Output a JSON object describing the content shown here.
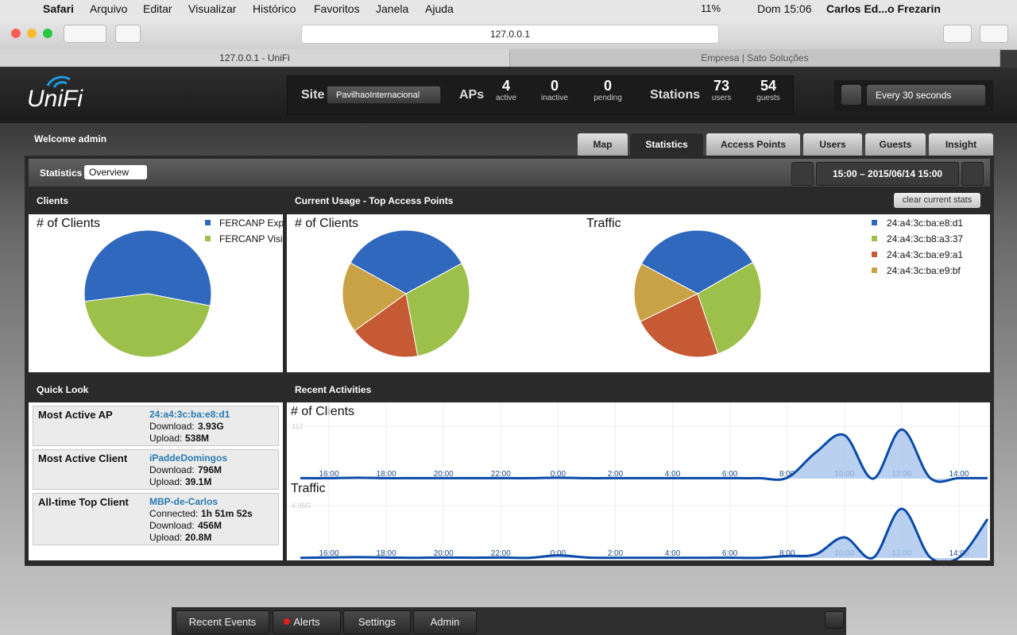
{
  "menubar": {
    "app": "Safari",
    "items": [
      "Arquivo",
      "Editar",
      "Visualizar",
      "Histórico",
      "Favoritos",
      "Janela",
      "Ajuda"
    ],
    "battery": "11%",
    "clock": "Dom 15:06",
    "user": "Carlos Ed...o Frezarin"
  },
  "browser": {
    "address": "127.0.0.1",
    "tabs": [
      "127.0.0.1 - UniFi",
      "Empresa | Sato Soluções"
    ]
  },
  "header": {
    "logo": "UniFi",
    "site_label": "Site",
    "site": "PavilhaoInternacional",
    "aps_label": "APs",
    "aps": [
      {
        "value": 4,
        "label": "active"
      },
      {
        "value": 0,
        "label": "inactive"
      },
      {
        "value": 0,
        "label": "pending"
      }
    ],
    "stations_label": "Stations",
    "stations": [
      {
        "value": 73,
        "label": "users"
      },
      {
        "value": 54,
        "label": "guests"
      }
    ],
    "refresh": "Every 30 seconds"
  },
  "welcome": "Welcome admin",
  "nav": [
    "Map",
    "Statistics",
    "Access Points",
    "Users",
    "Guests",
    "Insight"
  ],
  "active_nav": 1,
  "toolbar": {
    "label": "Statistics",
    "select": "Overview",
    "time": "15:00 – 2015/06/14 15:00"
  },
  "clients": {
    "title": "Clients",
    "chart": {
      "type": "pie",
      "title": "# of Clients",
      "labels": [
        "FERCANP Exp",
        "FERCANP Visi"
      ],
      "colors": [
        "#3068be",
        "#9cc04a"
      ],
      "values": [
        55,
        45
      ]
    }
  },
  "usage": {
    "title": "Current Usage - Top Access Points",
    "button": "clear current stats",
    "legend": {
      "labels": [
        "24:a4:3c:ba:e8:d1",
        "24:a4:3c:b8:a3:37",
        "24:a4:3c:ba:e9:a1",
        "24:a4:3c:ba:e9:bf"
      ],
      "colors": [
        "#3068be",
        "#9cc04a",
        "#c65a35",
        "#c8a244"
      ]
    },
    "charts": [
      {
        "type": "pie",
        "title": "# of Clients",
        "values": [
          34,
          30,
          18,
          18
        ]
      },
      {
        "type": "pie",
        "title": "Traffic",
        "values": [
          34,
          28,
          23,
          15
        ]
      }
    ]
  },
  "quick_look": {
    "title": "Quick Look",
    "items": [
      {
        "label": "Most Active AP",
        "name": "24:a4:3c:ba:e8:d1",
        "details": [
          {
            "label": "Download:",
            "value": "3.93G"
          },
          {
            "label": "Upload:",
            "value": "538M"
          }
        ]
      },
      {
        "label": "Most Active Client",
        "name": "iPaddeDomingos",
        "details": [
          {
            "label": "Download:",
            "value": "796M"
          },
          {
            "label": "Upload:",
            "value": "39.1M"
          }
        ]
      },
      {
        "label": "All-time Top Client",
        "name": "MBP-de-Carlos",
        "details": [
          {
            "label": "Connected:",
            "value": "1h 51m 52s"
          },
          {
            "label": "Download:",
            "value": "456M"
          },
          {
            "label": "Upload:",
            "value": "20.8M"
          }
        ]
      }
    ]
  },
  "recent": {
    "title": "Recent Activities",
    "charts": [
      {
        "type": "line",
        "title": "# of Clients",
        "color": "#0a4aa8",
        "x": [
          0,
          1,
          2,
          3,
          4,
          5,
          6,
          7,
          8,
          9,
          10,
          11,
          12,
          13,
          14,
          15,
          16,
          17,
          18,
          19,
          20,
          21,
          22,
          23,
          24
        ],
        "values": [
          1,
          1,
          2,
          1,
          1,
          1,
          1,
          1,
          1,
          2,
          1,
          1,
          1,
          1,
          1,
          1,
          1,
          2,
          56,
          93,
          0,
          105,
          1,
          1,
          1
        ],
        "xlim": [
          0,
          24
        ],
        "xticks": [
          {
            "value": 1,
            "label": "16:00"
          },
          {
            "value": 3,
            "label": "18:00"
          },
          {
            "value": 5,
            "label": "20:00"
          },
          {
            "value": 7,
            "label": "22:00"
          },
          {
            "value": 9,
            "label": "0:00"
          },
          {
            "value": 11,
            "label": "2:00"
          },
          {
            "value": 13,
            "label": "4:00"
          },
          {
            "value": 15,
            "label": "6:00"
          },
          {
            "value": 17,
            "label": "8:00"
          },
          {
            "value": 19,
            "label": "10:00"
          },
          {
            "value": 21,
            "label": "12:00"
          },
          {
            "value": 23,
            "label": "14:00"
          }
        ],
        "ylim": [
          0,
          112
        ],
        "yticks": [
          112
        ]
      },
      {
        "type": "line",
        "title": "Traffic",
        "color": "#0a4aa8",
        "x": [
          0,
          1,
          2,
          3,
          4,
          5,
          6,
          7,
          8,
          9,
          10,
          11,
          12,
          13,
          14,
          15,
          16,
          17,
          18,
          19,
          20,
          21,
          22,
          23,
          24
        ],
        "values": [
          0.02,
          0.05,
          0.08,
          0.05,
          0.02,
          0.05,
          0.03,
          0.05,
          0.02,
          0.25,
          0.05,
          0.02,
          0.02,
          0.02,
          0.02,
          0.03,
          0.02,
          0.2,
          0.35,
          1.95,
          0.02,
          4.65,
          0.05,
          0.05,
          3.68
        ],
        "xlim": [
          0,
          24
        ],
        "xticks": [
          {
            "value": 1,
            "label": "16:00"
          },
          {
            "value": 3,
            "label": "18:00"
          },
          {
            "value": 5,
            "label": "20:00"
          },
          {
            "value": 7,
            "label": "22:00"
          },
          {
            "value": 9,
            "label": "0:00"
          },
          {
            "value": 11,
            "label": "2:00"
          },
          {
            "value": 13,
            "label": "4:00"
          },
          {
            "value": 15,
            "label": "6:00"
          },
          {
            "value": 17,
            "label": "8:00"
          },
          {
            "value": 19,
            "label": "10:00"
          },
          {
            "value": 21,
            "label": "12:00"
          },
          {
            "value": 23,
            "label": "14:00"
          }
        ],
        "ylim": [
          0,
          4.95
        ],
        "yticks": [
          {
            "value": 4.95,
            "label": "4.95G"
          }
        ]
      }
    ]
  },
  "bottom_bar": [
    "Recent Events",
    "Alerts",
    "Settings",
    "Admin"
  ]
}
